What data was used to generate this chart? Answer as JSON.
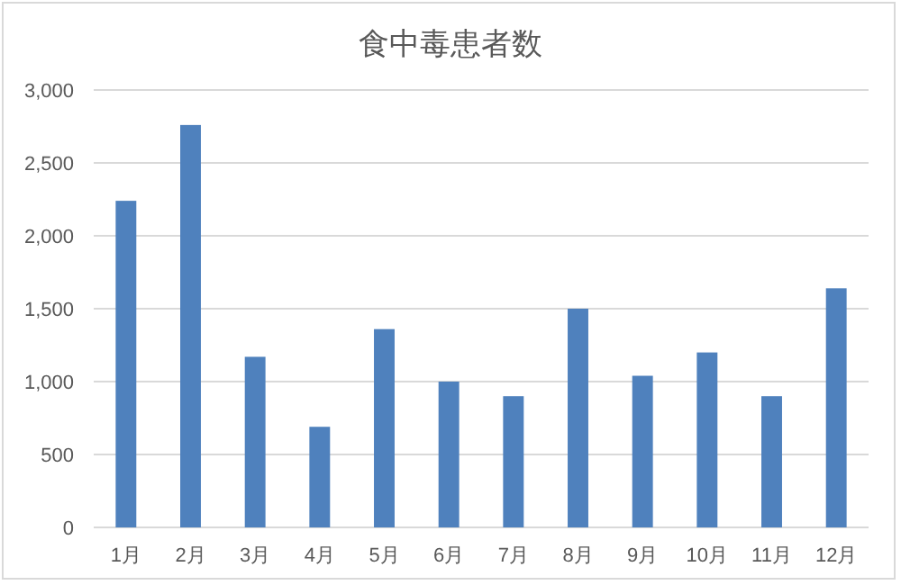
{
  "chart_data": {
    "type": "bar",
    "title": "食中毒患者数",
    "categories": [
      "1月",
      "2月",
      "3月",
      "4月",
      "5月",
      "6月",
      "7月",
      "8月",
      "9月",
      "10月",
      "11月",
      "12月"
    ],
    "values": [
      2240,
      2760,
      1170,
      690,
      1360,
      1000,
      900,
      1500,
      1040,
      1200,
      900,
      1640
    ],
    "color": "#4f81bd",
    "ylim": [
      0,
      3000
    ],
    "yticks": [
      {
        "value": 0,
        "label": "0"
      },
      {
        "value": 500,
        "label": "500"
      },
      {
        "value": 1000,
        "label": "1,000"
      },
      {
        "value": 1500,
        "label": "1,500"
      },
      {
        "value": 2000,
        "label": "2,000"
      },
      {
        "value": 2500,
        "label": "2,500"
      },
      {
        "value": 3000,
        "label": "3,000"
      }
    ],
    "grid": "y"
  }
}
